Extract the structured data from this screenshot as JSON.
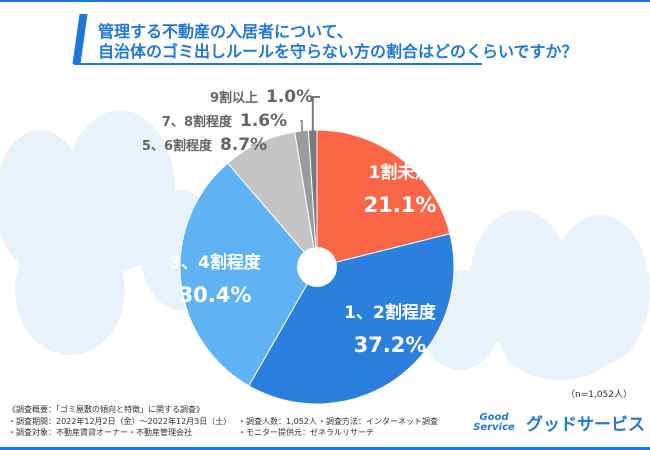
{
  "title": {
    "line1": "管理する不動産の入居者について、",
    "line2": "自治体のゴミ出しルールを守らない方の割合はどのくらいですか？"
  },
  "sample_size": "（n=1,052人）",
  "notes": {
    "heading": "《調査概要：「ゴミ屋敷の傾向と特徴」に関する調査》",
    "period": "・調査期間：2022年12月2日（金）〜2022年12月3日（土）",
    "count": "・調査人数：1,052人",
    "method": "・調査方法：インターネット調査",
    "target": "・調査対象：不動産賃貸オーナー・不動産管理会社",
    "provider": "・モニター提供元：ゼネラルリサーチ"
  },
  "logo": {
    "en1": "Good",
    "en2": "Service",
    "jp": "グッドサービス"
  },
  "chart_data": {
    "type": "pie",
    "title": "管理する不動産の入居者について、自治体のゴミ出しルールを守らない方の割合はどのくらいですか？",
    "categories": [
      "1割未満",
      "1、2割程度",
      "3、4割程度",
      "5、6割程度",
      "7、8割程度",
      "9割以上"
    ],
    "values": [
      21.1,
      37.2,
      30.4,
      8.7,
      1.6,
      1.0
    ],
    "labels": [
      "21.1%",
      "37.2%",
      "30.4%",
      "8.7%",
      "1.6%",
      "1.0%"
    ],
    "colors": [
      "#fb6646",
      "#2a80dc",
      "#5fb2f3",
      "#c4c4c4",
      "#9b9b9b",
      "#7a7a7a"
    ],
    "donut": true
  }
}
